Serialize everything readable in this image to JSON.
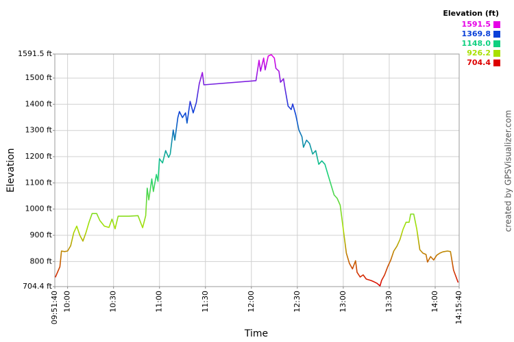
{
  "chart_data": {
    "type": "line",
    "x_label": "Time",
    "y_label": "Elevation",
    "credit": "created by GPSVisualizer.com",
    "x": [
      "09:52",
      "09:55",
      "09:56",
      "09:58",
      "10:00",
      "10:02",
      "10:04",
      "10:06",
      "10:08",
      "10:10",
      "10:12",
      "10:14",
      "10:16",
      "10:19",
      "10:21",
      "10:24",
      "10:27",
      "10:29",
      "10:31",
      "10:33",
      "10:40",
      "10:46",
      "10:49",
      "10:51",
      "10:52",
      "10:53",
      "10:55",
      "10:56",
      "10:58",
      "10:59",
      "11:00",
      "11:02",
      "11:04",
      "11:06",
      "11:07",
      "11:09",
      "11:10",
      "11:12",
      "11:13",
      "11:15",
      "11:17",
      "11:18",
      "11:20",
      "11:22",
      "11:24",
      "11:26",
      "11:28",
      "11:29",
      "12:03",
      "12:05",
      "12:06",
      "12:08",
      "12:09",
      "12:11",
      "12:13",
      "12:15",
      "12:16",
      "12:18",
      "12:19",
      "12:21",
      "12:22",
      "12:24",
      "12:26",
      "12:27",
      "12:29",
      "12:31",
      "12:33",
      "12:34",
      "12:36",
      "12:38",
      "12:40",
      "12:42",
      "12:44",
      "12:46",
      "12:48",
      "12:50",
      "12:52",
      "12:54",
      "12:56",
      "12:58",
      "13:00",
      "13:02",
      "13:04",
      "13:06",
      "13:08",
      "13:09",
      "13:11",
      "13:13",
      "13:15",
      "13:18",
      "13:20",
      "13:22",
      "13:24",
      "13:25",
      "13:27",
      "13:29",
      "13:31",
      "13:33",
      "13:35",
      "13:37",
      "13:39",
      "13:41",
      "13:43",
      "13:44",
      "13:46",
      "13:48",
      "13:50",
      "13:52",
      "13:54",
      "13:55",
      "13:57",
      "13:59",
      "14:01",
      "14:03",
      "14:05",
      "14:08",
      "14:10",
      "14:12",
      "14:15"
    ],
    "series": [
      {
        "name": "Elevation",
        "values": [
          740,
          780,
          840,
          838,
          840,
          860,
          910,
          935,
          900,
          878,
          910,
          950,
          983,
          983,
          957,
          935,
          930,
          962,
          925,
          973,
          973,
          975,
          929,
          975,
          1080,
          1035,
          1115,
          1067,
          1132,
          1106,
          1192,
          1176,
          1223,
          1197,
          1210,
          1302,
          1263,
          1349,
          1372,
          1349,
          1367,
          1328,
          1411,
          1367,
          1406,
          1479,
          1521,
          1474,
          1490,
          1568,
          1526,
          1576,
          1531,
          1584,
          1589,
          1576,
          1537,
          1526,
          1484,
          1497,
          1458,
          1393,
          1380,
          1401,
          1359,
          1302,
          1276,
          1236,
          1263,
          1250,
          1210,
          1223,
          1171,
          1184,
          1171,
          1132,
          1093,
          1054,
          1041,
          1015,
          923,
          832,
          793,
          772,
          803,
          759,
          741,
          749,
          733,
          728,
          723,
          717,
          707,
          728,
          749,
          780,
          806,
          840,
          858,
          884,
          923,
          950,
          950,
          981,
          981,
          923,
          845,
          832,
          827,
          798,
          819,
          806,
          824,
          832,
          837,
          840,
          838,
          767,
          720
        ]
      }
    ],
    "xlim": [
      "09:51:40",
      "14:15:40"
    ],
    "xticks": [
      "09:51:40",
      "10:00",
      "10:30",
      "11:00",
      "11:30",
      "12:00",
      "12:30",
      "13:00",
      "13:30",
      "14:00",
      "14:15:40"
    ],
    "ylim": [
      704.4,
      1591.5
    ],
    "yticks": [
      {
        "value": 704.4,
        "label": "704.4 ft"
      },
      {
        "value": 800,
        "label": "800 ft"
      },
      {
        "value": 900,
        "label": "900 ft"
      },
      {
        "value": 1000,
        "label": "1000 ft"
      },
      {
        "value": 1100,
        "label": "1100 ft"
      },
      {
        "value": 1200,
        "label": "1200 ft"
      },
      {
        "value": 1300,
        "label": "1300 ft"
      },
      {
        "value": 1400,
        "label": "1400 ft"
      },
      {
        "value": 1500,
        "label": "1500 ft"
      },
      {
        "value": 1591.5,
        "label": "1591.5 ft"
      }
    ],
    "grid": true,
    "color_scale": {
      "title": "Elevation (ft)",
      "stops": [
        {
          "value": 1591.5,
          "label": "1591.5",
          "color": "#e600e6"
        },
        {
          "value": 1369.8,
          "label": "1369.8",
          "color": "#0a40d8"
        },
        {
          "value": 1148,
          "label": "1148.0",
          "color": "#10d080"
        },
        {
          "value": 926.2,
          "label": "926.2",
          "color": "#a8e000"
        },
        {
          "value": 704.4,
          "label": "704.4",
          "color": "#dd0000"
        }
      ]
    }
  }
}
